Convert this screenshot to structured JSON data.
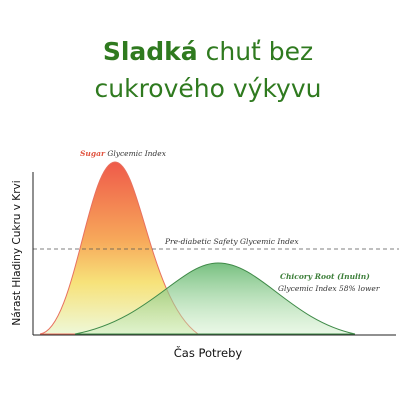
{
  "title": {
    "highlight": "Sladká",
    "line1": "chuť bez",
    "line2": "cukrového výkyvu"
  },
  "labels": {
    "sugar_name": "Sugar",
    "sugar_rest": "Glycemic Index",
    "threshold": "Pre-diabetic Safety Glycemic Index",
    "chicory_name": "Chicory Root (Inulin)",
    "chicory_note": "Glycemic Index 58% lower"
  },
  "axes": {
    "y_label": "Nárast Hladiny Cukru v Krvi",
    "x_label": "Čas Potreby"
  }
}
